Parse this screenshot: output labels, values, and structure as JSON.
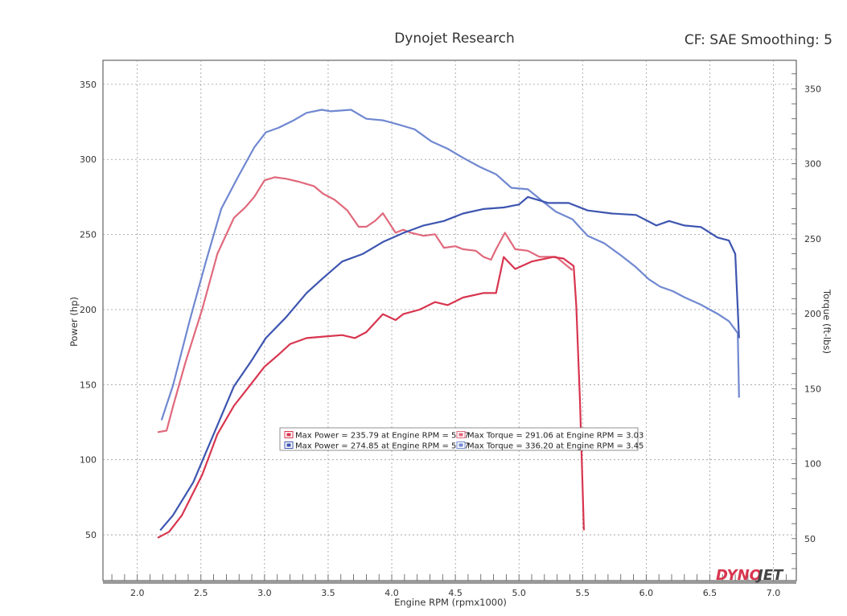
{
  "header": {
    "title": "Dynojet Research",
    "settings": "CF: SAE Smoothing: 5"
  },
  "logo": "DYNOJET",
  "chart_data": {
    "type": "line",
    "title": "Dynojet Research",
    "xlabel": "Engine RPM (rpmx1000)",
    "ylabel_left": "Power (hp)",
    "ylabel_right": "Torque (ft-lbs)",
    "xlim": [
      1.73,
      7.18
    ],
    "ylim_left": [
      19.5,
      366
    ],
    "ylim_right": [
      22,
      369
    ],
    "xticks": [
      "2.0",
      "2.5",
      "3.0",
      "3.5",
      "4.0",
      "4.5",
      "5.0",
      "5.5",
      "6.0",
      "6.5",
      "7.0"
    ],
    "yticks_left": [
      "50",
      "100",
      "150",
      "200",
      "250",
      "300",
      "350"
    ],
    "yticks_right": [
      "50",
      "100",
      "150",
      "200",
      "250",
      "300",
      "350"
    ],
    "grid": true,
    "legend_position": "center",
    "legend": [
      {
        "text": "Max Power = 235.79 at Engine RPM = 5.27",
        "color": "#d8354f"
      },
      {
        "text": "Max Torque = 291.06 at Engine RPM = 3.03",
        "color": "#e0697c"
      },
      {
        "text": "Max Power = 274.85 at Engine RPM = 5.07",
        "color": "#3d55b0"
      },
      {
        "text": "Max Torque = 336.20 at Engine RPM = 3.45",
        "color": "#7088d0"
      }
    ],
    "series": [
      {
        "axis": "right",
        "color": "#e0697c",
        "x": [
          2.16,
          2.23,
          2.28,
          2.38,
          2.51,
          2.63,
          2.76,
          2.85,
          2.92,
          3.0,
          3.08,
          3.17,
          3.27,
          3.39,
          3.46,
          3.55,
          3.65,
          3.74,
          3.8,
          3.87,
          3.93,
          4.03,
          4.09,
          4.15,
          4.25,
          4.34,
          4.41,
          4.5,
          4.56,
          4.66,
          4.72,
          4.78,
          4.82,
          4.89,
          4.97,
          5.07,
          5.16,
          5.29,
          5.42
        ],
        "y": [
          121,
          122,
          138,
          168,
          203,
          240,
          264,
          271,
          278,
          289,
          291,
          290,
          288,
          285,
          280,
          276,
          269,
          258,
          258,
          262,
          267,
          254,
          256,
          254,
          252,
          253,
          244,
          245,
          243,
          242,
          238,
          236,
          243,
          254,
          243,
          242,
          238,
          238,
          229
        ]
      },
      {
        "axis": "left",
        "color": "#d8354f",
        "x": [
          2.16,
          2.25,
          2.35,
          2.51,
          2.63,
          2.76,
          2.89,
          3.0,
          3.11,
          3.2,
          3.33,
          3.46,
          3.61,
          3.71,
          3.8,
          3.93,
          4.03,
          4.09,
          4.22,
          4.34,
          4.44,
          4.56,
          4.72,
          4.82,
          4.88,
          4.97,
          5.1,
          5.27,
          5.35,
          5.43,
          5.45,
          5.48,
          5.51
        ],
        "y": [
          48,
          52,
          63,
          90,
          117,
          136,
          150,
          162,
          170,
          177,
          181,
          182,
          183,
          181,
          185,
          197,
          193,
          197,
          200,
          205,
          203,
          208,
          211,
          211,
          235,
          227,
          232,
          235,
          234,
          229,
          203,
          138,
          53
        ]
      },
      {
        "axis": "right",
        "color": "#7088d0",
        "x": [
          2.19,
          2.28,
          2.41,
          2.54,
          2.66,
          2.79,
          2.92,
          3.01,
          3.11,
          3.23,
          3.33,
          3.45,
          3.52,
          3.68,
          3.8,
          3.93,
          4.06,
          4.18,
          4.31,
          4.44,
          4.56,
          4.69,
          4.82,
          4.94,
          5.07,
          5.2,
          5.29,
          5.42,
          5.54,
          5.67,
          5.8,
          5.92,
          6.02,
          6.11,
          6.21,
          6.3,
          6.43,
          6.56,
          6.65,
          6.72,
          6.73
        ],
        "y": [
          129,
          152,
          195,
          235,
          270,
          291,
          311,
          321,
          324,
          329,
          334,
          336,
          335,
          336,
          330,
          329,
          326,
          323,
          315,
          310,
          304,
          298,
          293,
          284,
          283,
          274,
          268,
          263,
          252,
          247,
          239,
          231,
          223,
          218,
          215,
          211,
          206,
          200,
          195,
          187,
          144
        ]
      },
      {
        "axis": "left",
        "color": "#3d55b0",
        "x": [
          2.18,
          2.28,
          2.44,
          2.6,
          2.76,
          2.89,
          3.01,
          3.17,
          3.33,
          3.46,
          3.61,
          3.77,
          3.93,
          4.09,
          4.25,
          4.41,
          4.56,
          4.72,
          4.88,
          5.0,
          5.07,
          5.23,
          5.39,
          5.54,
          5.73,
          5.92,
          6.08,
          6.18,
          6.3,
          6.43,
          6.56,
          6.65,
          6.7,
          6.73
        ],
        "y": [
          53,
          63,
          85,
          117,
          149,
          165,
          181,
          195,
          211,
          221,
          232,
          237,
          245,
          251,
          256,
          259,
          264,
          267,
          268,
          270,
          275,
          271,
          271,
          266,
          264,
          263,
          256,
          259,
          256,
          255,
          248,
          246,
          237,
          181
        ]
      }
    ]
  }
}
